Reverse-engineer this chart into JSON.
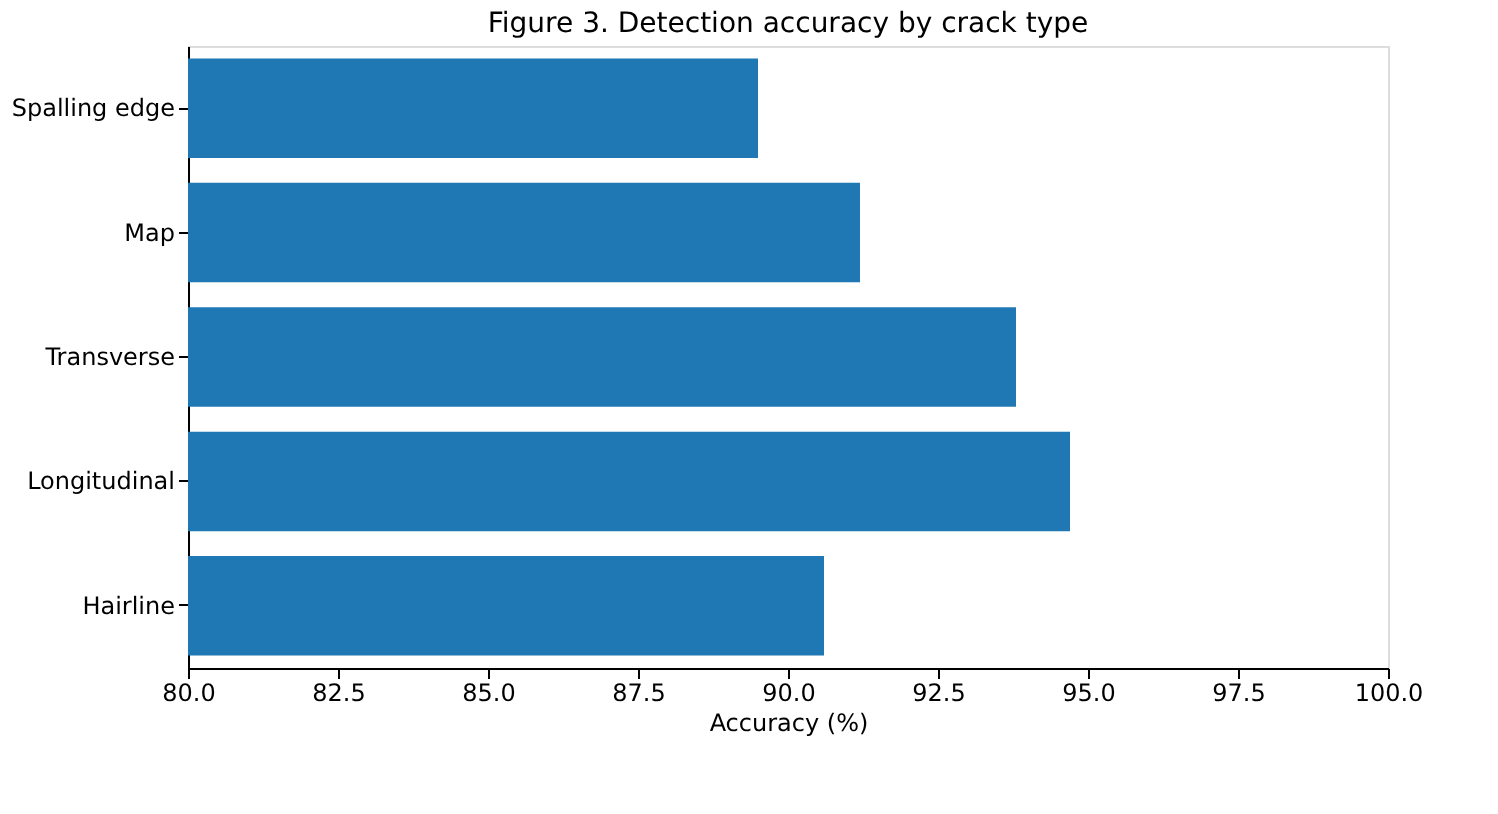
{
  "chart_data": {
    "type": "bar",
    "orientation": "horizontal",
    "title": "Figure 3. Detection accuracy by crack type",
    "xlabel": "Accuracy (%)",
    "categories": [
      "Spalling edge",
      "Map",
      "Transverse",
      "Longitudinal",
      "Hairline"
    ],
    "values": [
      89.5,
      91.2,
      93.8,
      94.7,
      90.6
    ],
    "color": "#1f77b4",
    "xlim": [
      80,
      100
    ],
    "xticks": [
      {
        "value": 80,
        "label": "80.0"
      },
      {
        "value": 82.5,
        "label": "82.5"
      },
      {
        "value": 85,
        "label": "85.0"
      },
      {
        "value": 87.5,
        "label": "87.5"
      },
      {
        "value": 90,
        "label": "90.0"
      },
      {
        "value": 92.5,
        "label": "92.5"
      },
      {
        "value": 95,
        "label": "95.0"
      },
      {
        "value": 97.5,
        "label": "97.5"
      },
      {
        "value": 100,
        "label": "100.0"
      }
    ],
    "grid": false
  }
}
